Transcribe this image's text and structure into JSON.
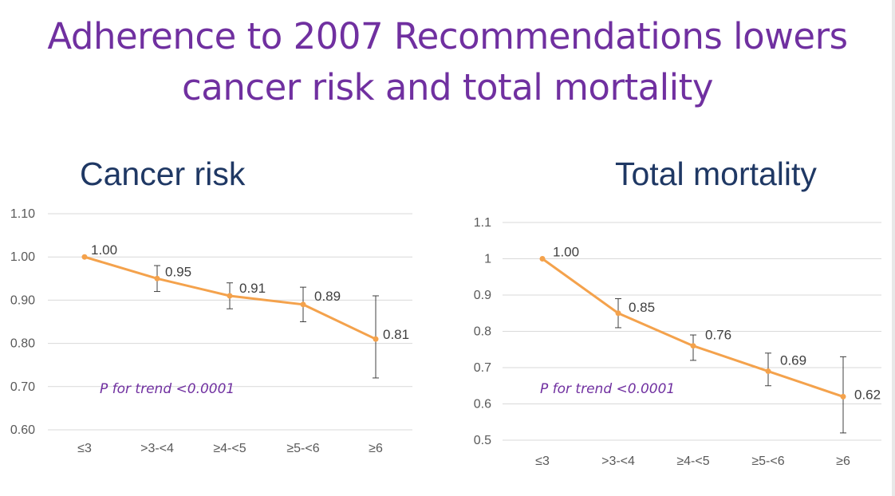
{
  "slide": {
    "title_line1": "Adherence to 2007 Recommendations lowers",
    "title_line2": "cancer risk and total mortality"
  },
  "colors": {
    "title": "#7030A0",
    "chart_title": "#1F3864",
    "series": "#F4A24C",
    "annotation": "#7030A0",
    "grid": "#D9D9D9",
    "axis_text": "#595959"
  },
  "chart_data": [
    {
      "type": "line",
      "title": "Cancer risk",
      "categories": [
        "≤3",
        ">3-<4",
        "≥4-<5",
        "≥5-<6",
        "≥6"
      ],
      "series": [
        {
          "name": "Cancer risk",
          "values": [
            1.0,
            0.95,
            0.91,
            0.89,
            0.81
          ],
          "labels": [
            "1.00",
            "0.95",
            "0.91",
            "0.89",
            "0.81"
          ],
          "error_low": [
            null,
            0.92,
            0.88,
            0.85,
            0.72
          ],
          "error_high": [
            null,
            0.98,
            0.94,
            0.93,
            0.91
          ]
        }
      ],
      "ylim": [
        0.6,
        1.1
      ],
      "yticks": [
        0.6,
        0.7,
        0.8,
        0.9,
        1.0,
        1.1
      ],
      "ytick_labels": [
        "0.60",
        "0.70",
        "0.80",
        "0.90",
        "1.00",
        "1.10"
      ],
      "annotation": "P for trend <0.0001",
      "xlabel": "",
      "ylabel": "",
      "grid": true
    },
    {
      "type": "line",
      "title": "Total mortality",
      "categories": [
        "≤3",
        ">3-<4",
        "≥4-<5",
        "≥5-<6",
        "≥6"
      ],
      "series": [
        {
          "name": "Total mortality",
          "values": [
            1.0,
            0.85,
            0.76,
            0.69,
            0.62
          ],
          "labels": [
            "1.00",
            "0.85",
            "0.76",
            "0.69",
            "0.62"
          ],
          "error_low": [
            null,
            0.81,
            0.72,
            0.65,
            0.52
          ],
          "error_high": [
            null,
            0.89,
            0.79,
            0.74,
            0.73
          ]
        }
      ],
      "ylim": [
        0.5,
        1.1
      ],
      "yticks": [
        0.5,
        0.6,
        0.7,
        0.8,
        0.9,
        1.0,
        1.1
      ],
      "ytick_labels": [
        "0.5",
        "0.6",
        "0.7",
        "0.8",
        "0.9",
        "1",
        "1.1"
      ],
      "annotation": "P for trend <0.0001",
      "xlabel": "",
      "ylabel": "",
      "grid": true
    }
  ]
}
